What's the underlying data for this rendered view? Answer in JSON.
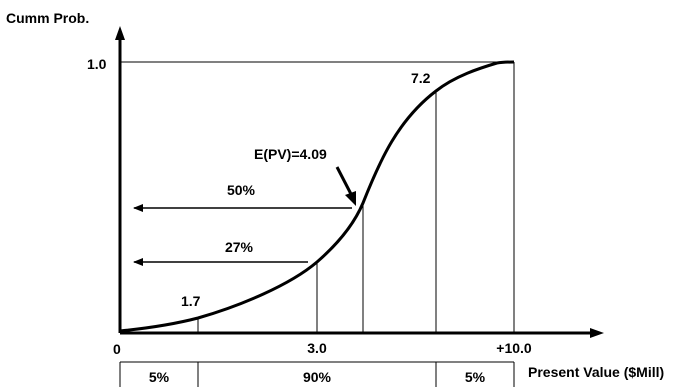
{
  "axes": {
    "y_label": "Cumm Prob.",
    "y_tick": "1.0",
    "origin_label": "0",
    "x_label": "Present Value ($Mill)",
    "x_ticks": [
      "3.0",
      "+10.0"
    ]
  },
  "curve": {
    "point_labels": [
      "1.7",
      "7.2"
    ],
    "expected_value_label": "E(PV)=4.09"
  },
  "arrows": {
    "upper_label": "50%",
    "lower_label": "27%"
  },
  "bottom_table": {
    "cells": [
      "5%",
      "90%",
      "5%"
    ]
  },
  "colors": {
    "line": "#000000",
    "background": "#ffffff"
  }
}
